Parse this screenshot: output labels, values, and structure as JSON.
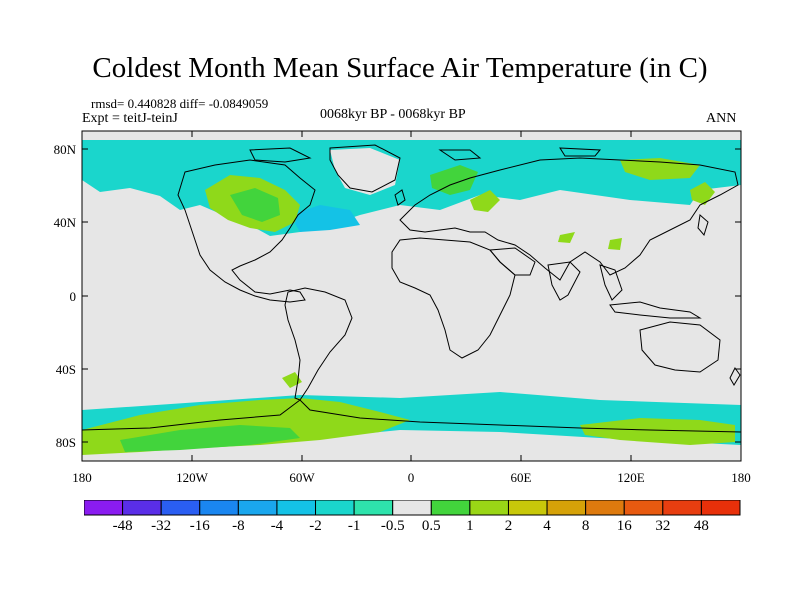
{
  "title": "Coldest Month Mean Surface Air Temperature (in C)",
  "stats_text": "rmsd= 0.440828  diff= -0.0849059",
  "experiment_text": "Expt = teitJ-teinJ",
  "period_text": "0068kyr BP - 0068kyr BP",
  "season_text": "ANN",
  "lat_labels": [
    "80N",
    "40N",
    "0",
    "40S",
    "80S"
  ],
  "lon_labels": [
    "180",
    "120W",
    "60W",
    "0",
    "60E",
    "120E",
    "180"
  ],
  "colorbar": {
    "labels": [
      "-48",
      "-32",
      "-16",
      "-8",
      "-4",
      "-2",
      "-1",
      "-0.5",
      "0.5",
      "1",
      "2",
      "4",
      "8",
      "16",
      "32",
      "48"
    ],
    "colors": [
      "#8a1cf0",
      "#5a2ee8",
      "#2a5ef2",
      "#1a86f0",
      "#1aa7ee",
      "#14c2e6",
      "#1ad6cc",
      "#2ee3ac",
      "#e6e6e6",
      "#42d43c",
      "#9ad616",
      "#c8c80a",
      "#d6a208",
      "#de7a0e",
      "#e85a10",
      "#e83e10",
      "#e8300a"
    ]
  },
  "colors": {
    "land_neutral": "#e6e6e6",
    "cyan_anomaly": "#1ad6cc",
    "green_anomaly": "#8fd91a",
    "bright_green": "#42d43c"
  }
}
